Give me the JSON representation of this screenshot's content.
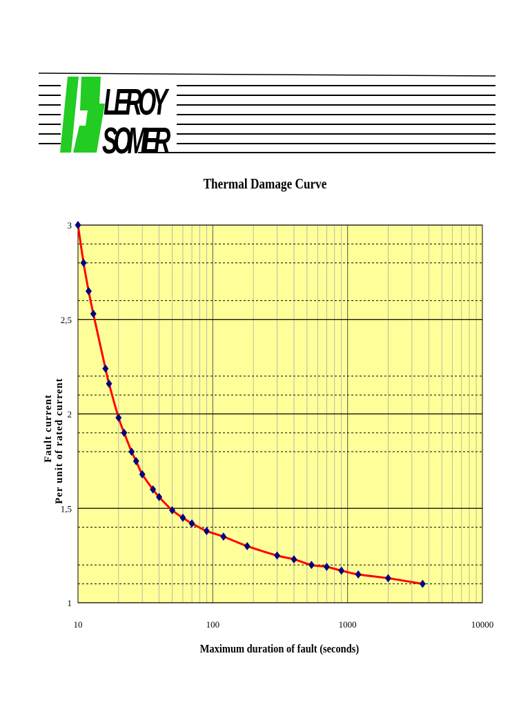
{
  "logo": {
    "line1": "LEROY",
    "line2": "SOMER",
    "accent": "#22cc22"
  },
  "chart_data": {
    "type": "scatter",
    "title": "Thermal Damage Curve",
    "xlabel": "Maximum duration of fault (seconds)",
    "ylabel_lines": [
      "Fault current",
      "Per unit of rated current"
    ],
    "xscale": "log",
    "xlim": [
      10,
      10000
    ],
    "ylim": [
      1,
      3
    ],
    "xticks": [
      "10",
      "100",
      "1000",
      "10000"
    ],
    "yticks": [
      "1",
      "1,5",
      "2",
      "2,5",
      "3"
    ],
    "y_major": [
      1,
      1.5,
      2,
      2.5,
      3
    ],
    "y_minor_dashed": [
      1.1,
      1.2,
      1.4,
      1.8,
      1.9,
      2.1,
      2.2,
      2.6,
      2.8,
      2.9
    ],
    "plot_background": "#ffff99",
    "line_color": "#ff0000",
    "marker_color": "#000080",
    "grid": true,
    "series": [
      {
        "x": [
          10,
          11,
          12,
          13,
          16,
          17,
          20,
          22,
          25,
          27,
          30,
          36,
          40,
          50,
          60,
          70,
          90,
          120,
          180,
          300,
          400,
          540,
          700,
          900,
          1200,
          2000,
          3600
        ],
        "y": [
          3.0,
          2.8,
          2.65,
          2.53,
          2.24,
          2.16,
          1.98,
          1.9,
          1.8,
          1.75,
          1.68,
          1.6,
          1.56,
          1.49,
          1.45,
          1.42,
          1.38,
          1.35,
          1.3,
          1.25,
          1.23,
          1.2,
          1.19,
          1.17,
          1.15,
          1.13,
          1.1
        ]
      }
    ]
  }
}
